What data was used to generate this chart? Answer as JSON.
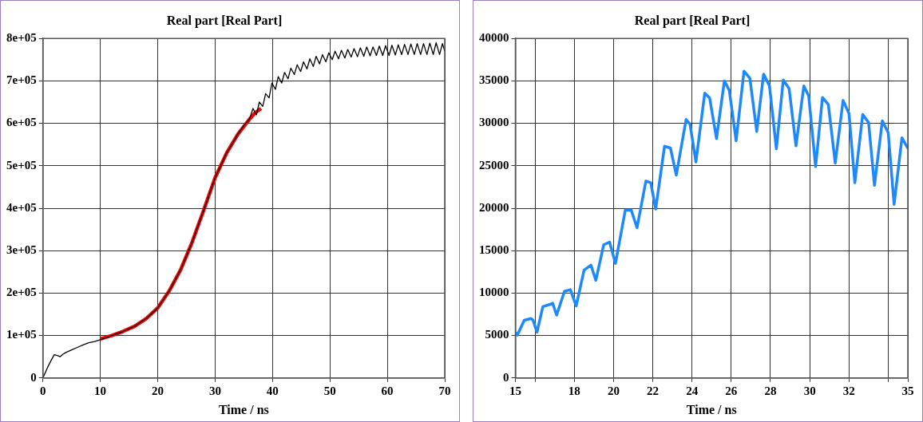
{
  "chart_data": [
    {
      "type": "line",
      "title": "Real part [Real Part]",
      "xlabel": "Time / ns",
      "xlim": [
        0,
        70
      ],
      "xticks": [
        0,
        10,
        20,
        30,
        40,
        50,
        60,
        70
      ],
      "ylim": [
        0,
        800000
      ],
      "yticks": [
        0,
        {
          "value": 100000,
          "label": "1e+05"
        },
        {
          "value": 200000,
          "label": "2e+05"
        },
        {
          "value": 300000,
          "label": "3e+05"
        },
        {
          "value": 400000,
          "label": "4e+05"
        },
        {
          "value": 500000,
          "label": "5e+05"
        },
        {
          "value": 600000,
          "label": "6e+05"
        },
        {
          "value": 700000,
          "label": "7e+05"
        },
        {
          "value": 800000,
          "label": "8e+05"
        }
      ],
      "grid": true,
      "marker": "none",
      "series": [
        {
          "color": "#000000",
          "x": [
            0,
            0.5,
            1,
            1.5,
            2,
            2.5,
            3,
            3.5,
            4,
            5,
            6,
            7,
            8,
            9,
            10,
            12,
            14,
            16,
            18,
            20,
            22,
            24,
            26,
            28,
            30,
            32,
            34,
            35,
            36,
            36.6,
            37.2,
            37.7,
            38.3,
            38.8,
            39.4,
            39.9,
            40.5,
            41.0,
            41.6,
            42.1,
            42.7,
            43.2,
            43.8,
            44.3,
            44.9,
            45.4,
            46.0,
            46.5,
            47.1,
            47.6,
            48.2,
            48.7,
            49.3,
            49.8,
            50.4,
            50.9,
            51.5,
            52.0,
            52.6,
            53.1,
            53.7,
            54.2,
            54.8,
            55.3,
            55.9,
            56.4,
            57.0,
            57.5,
            58.1,
            58.6,
            59.2,
            59.7,
            60.3,
            60.8,
            61.4,
            61.9,
            62.5,
            63.0,
            63.6,
            64.1,
            64.7,
            65.2,
            65.8,
            66.3,
            66.9,
            67.4,
            68.0,
            68.5,
            69.1,
            69.6,
            70
          ],
          "values": [
            0,
            15000,
            30000,
            43000,
            55000,
            53000,
            50000,
            56000,
            60000,
            66000,
            72000,
            78000,
            83000,
            86000,
            90000,
            100000,
            110000,
            122000,
            140000,
            165000,
            205000,
            255000,
            320000,
            395000,
            472000,
            530000,
            575000,
            595000,
            610000,
            635000,
            620000,
            650000,
            640000,
            670000,
            660000,
            695000,
            680000,
            710000,
            695000,
            720000,
            705000,
            730000,
            715000,
            738000,
            722000,
            745000,
            728000,
            752000,
            734000,
            758000,
            740000,
            762000,
            745000,
            766000,
            750000,
            770000,
            752000,
            772000,
            754000,
            774000,
            756000,
            776000,
            757000,
            778000,
            758000,
            780000,
            759000,
            780000,
            760000,
            782000,
            760000,
            783000,
            760000,
            784000,
            761000,
            785000,
            762000,
            786000,
            762000,
            787000,
            762000,
            788000,
            762000,
            788000,
            762000,
            789000,
            762000,
            790000,
            762000,
            788000,
            770000
          ]
        },
        {
          "color": "#ff0000",
          "x": [
            10,
            12,
            14,
            16,
            18,
            20,
            22,
            24,
            26,
            28,
            30,
            32,
            34,
            36,
            37,
            38
          ],
          "values": [
            92000,
            100000,
            110000,
            122000,
            140000,
            165000,
            205000,
            255000,
            320000,
            395000,
            472000,
            530000,
            575000,
            610000,
            625000,
            635000
          ]
        }
      ]
    },
    {
      "type": "line",
      "title": "Real part [Real Part]",
      "xlabel": "Time / ns",
      "xlim": [
        15,
        35
      ],
      "xticks": [
        15,
        {
          "value": 16,
          "label": null
        },
        18,
        20,
        22,
        24,
        26,
        28,
        30,
        32,
        {
          "value": 34,
          "label": null
        },
        35
      ],
      "ylim": [
        0,
        40000
      ],
      "yticks": [
        0,
        5000,
        10000,
        15000,
        20000,
        25000,
        30000,
        35000,
        40000
      ],
      "grid": true,
      "marker": "none",
      "series": [
        {
          "color": "#1e88ff",
          "x": [
            15,
            15.1,
            15.45,
            15.8,
            15.9,
            16.1,
            16.4,
            16.8,
            16.9,
            17.1,
            17.5,
            17.8,
            18.1,
            18.5,
            18.85,
            19.1,
            19.5,
            19.8,
            20.1,
            20.6,
            20.9,
            21.2,
            21.65,
            21.9,
            22.15,
            22.6,
            22.9,
            23.2,
            23.7,
            23.9,
            24.2,
            24.65,
            24.9,
            25.25,
            25.65,
            25.9,
            26.25,
            26.65,
            26.95,
            27.3,
            27.65,
            27.95,
            28.3,
            28.65,
            28.95,
            29.3,
            29.7,
            29.95,
            30.3,
            30.65,
            30.95,
            31.3,
            31.7,
            32.0,
            32.3,
            32.7,
            33.0,
            33.3,
            33.7,
            34.0,
            34.3,
            34.7,
            35.0
          ],
          "values": [
            5400,
            5050,
            6800,
            7000,
            6800,
            5400,
            8400,
            8700,
            8800,
            7400,
            10200,
            10400,
            8500,
            12700,
            13300,
            11500,
            15700,
            16000,
            13500,
            19760,
            19800,
            17700,
            23200,
            23000,
            19900,
            27300,
            27100,
            23900,
            30450,
            29900,
            25450,
            33550,
            33000,
            28200,
            35000,
            33900,
            27950,
            36150,
            35300,
            29050,
            35800,
            34400,
            27000,
            35100,
            34100,
            27350,
            34400,
            33200,
            24900,
            33050,
            32200,
            25300,
            32700,
            31150,
            23000,
            31050,
            30100,
            22700,
            30300,
            28900,
            20450,
            28300,
            27050
          ]
        }
      ]
    }
  ]
}
